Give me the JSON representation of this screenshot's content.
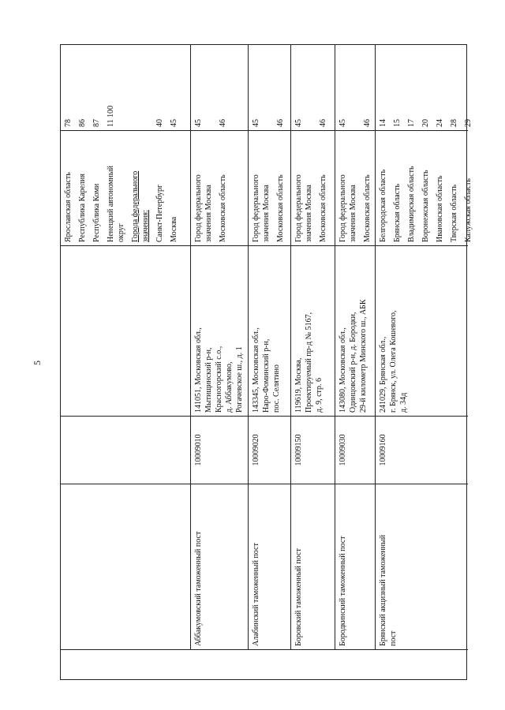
{
  "page_number": "5",
  "rows": [
    {
      "name": [],
      "code": "",
      "address": [],
      "entries": [
        {
          "region": [
            "Ярославская область"
          ],
          "code": "78"
        },
        {
          "region": [
            "Республика Карелия"
          ],
          "code": "86"
        },
        {
          "region": [
            "Республика Коми"
          ],
          "code": "87"
        },
        {
          "region": [
            "Ненецкий автономный",
            "округ"
          ],
          "code": "11 100"
        },
        {
          "region": [
            "Города федерального",
            "значения:"
          ],
          "code": "",
          "heading": true
        },
        {
          "region": [
            "Санкт-Петербург"
          ],
          "code": "40"
        },
        {
          "region": [
            "Москва"
          ],
          "code": "45"
        }
      ]
    },
    {
      "name": [
        "Аббакумовский таможенный пост"
      ],
      "code": "10009010",
      "address": [
        "141051, Московская обл.,",
        "Мытищинский р-н,",
        "Красногорский с.о.,",
        "д. Аббакумово,",
        "Рогачевское ш., д. 1"
      ],
      "entries": [
        {
          "region": [
            "Город федерального",
            "значения Москва"
          ],
          "code": "45"
        },
        {
          "region": [
            "Московская область"
          ],
          "code": "46"
        }
      ]
    },
    {
      "name": [
        "Алабинский таможенный пост"
      ],
      "code": "10009020",
      "address": [
        "143345, Московская обл.,",
        "Наро-Фоминский р-н,",
        "пос. Селятино"
      ],
      "entries": [
        {
          "region": [
            "Город федерального",
            "значения Москва"
          ],
          "code": "45"
        },
        {
          "region": [
            "Московская область"
          ],
          "code": "46"
        }
      ]
    },
    {
      "name": [
        "Боровский таможенный пост"
      ],
      "code": "10009150",
      "address": [
        "119619, Москва,",
        "Проектируемый пр-д № 5167,",
        "д. 9, стр. 6"
      ],
      "entries": [
        {
          "region": [
            "Город федерального",
            "значения Москва"
          ],
          "code": "45"
        },
        {
          "region": [
            "Московская область"
          ],
          "code": "46"
        }
      ]
    },
    {
      "name": [
        "Бородкинский таможенный пост"
      ],
      "code": "10009030",
      "address": [
        "143080, Московская обл.,",
        "Одинцовский р-н, д. Бородки,",
        "29-й километр Минского ш., АБК"
      ],
      "entries": [
        {
          "region": [
            "Город федерального",
            "значения Москва"
          ],
          "code": "45"
        },
        {
          "region": [
            "Московская область"
          ],
          "code": "46"
        }
      ]
    },
    {
      "name": [
        "Брянский акцизный таможенный",
        "пост"
      ],
      "code": "10009160",
      "address": [
        "241029, Брянская обл.,",
        "г. Брянск, ул. Олега Кошевого,",
        "д. 34д"
      ],
      "entries": [
        {
          "region": [
            "Белгородская область"
          ],
          "code": "14"
        },
        {
          "region": [
            "Брянская область"
          ],
          "code": "15"
        },
        {
          "region": [
            "Владимирская область"
          ],
          "code": "17"
        },
        {
          "region": [
            "Воронежская область"
          ],
          "code": "20"
        },
        {
          "region": [
            "Ивановская область"
          ],
          "code": "24"
        },
        {
          "region": [
            "Тверская область"
          ],
          "code": "28"
        },
        {
          "region": [
            "Калужская область"
          ],
          "code": "29"
        }
      ]
    }
  ]
}
